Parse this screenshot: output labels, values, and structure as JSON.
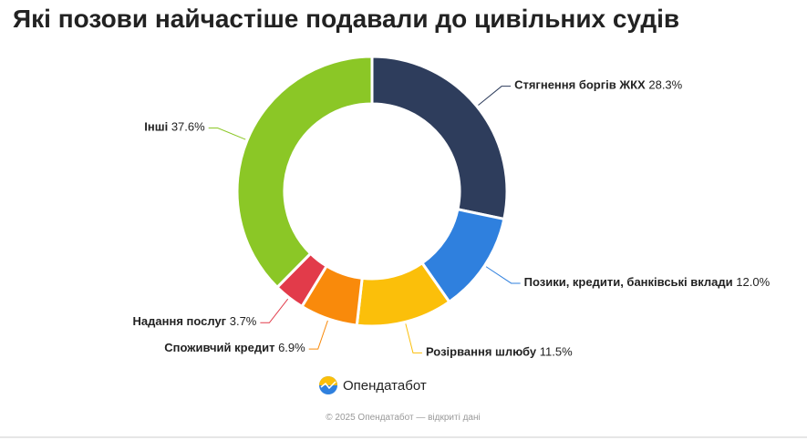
{
  "chart_data": {
    "type": "donut",
    "title": "Які позови найчастіше подавали до цивільних судів",
    "categories": [
      "Стягнення боргів ЖКХ",
      "Позики, кредити, банківські вклади",
      "Розірвання шлюбу",
      "Споживчий кредит",
      "Надання послуг",
      "Інші"
    ],
    "values": [
      28.3,
      12.0,
      11.5,
      6.9,
      3.7,
      37.6
    ],
    "value_labels": [
      "28.3%",
      "12.0%",
      "11.5%",
      "6.9%",
      "3.7%",
      "37.6%"
    ],
    "colors": [
      "#2e3d5c",
      "#2f80de",
      "#fbbf0a",
      "#f98a0b",
      "#e23b4a",
      "#8bc726"
    ]
  },
  "brand": "Опендатабот",
  "footer": "© 2025 Опендатабот — відкриті дані"
}
